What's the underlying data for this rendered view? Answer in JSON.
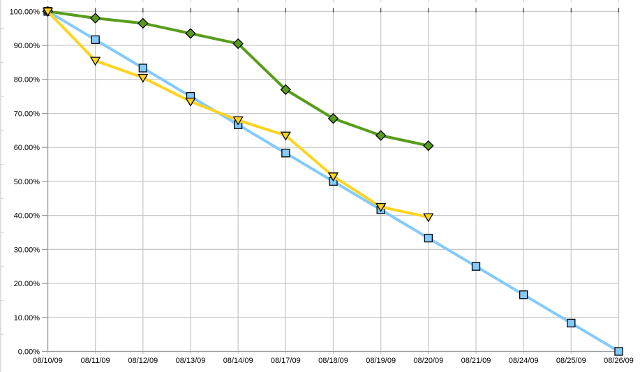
{
  "chart": {
    "background_color": "#FFFFFF",
    "gridline_color": "#C6C6C6",
    "axis_color": "#9A9A9A",
    "top_tick_color": "#3C3C3C",
    "edge_artifact_color": "#D4D4D4",
    "text_color": "#000000",
    "title": "",
    "legend": "none"
  },
  "chart_data": {
    "type": "line",
    "title": "",
    "xlabel": "",
    "ylabel": "",
    "grid": true,
    "legend": "none",
    "ylim": [
      0,
      100
    ],
    "y_major_step": 10,
    "y_tick_labels": [
      "0.00%",
      "10.00%",
      "20.00%",
      "30.00%",
      "40.00%",
      "50.00%",
      "60.00%",
      "70.00%",
      "80.00%",
      "90.00%",
      "100.00%"
    ],
    "categories": [
      "08/10/09",
      "08/11/09",
      "08/12/09",
      "08/13/09",
      "08/14/09",
      "08/17/09",
      "08/18/09",
      "08/19/09",
      "08/20/09",
      "08/21/09",
      "08/24/09",
      "08/25/09",
      "08/26/09"
    ],
    "series": [
      {
        "name": "ideal-burndown-blue-squares",
        "marker": "square",
        "color": "#83CAFF",
        "line_width": 4,
        "values": [
          100,
          91.67,
          83.33,
          75,
          66.67,
          58.33,
          50,
          41.67,
          33.33,
          25,
          16.67,
          8.33,
          0
        ]
      },
      {
        "name": "actual-green-diamonds",
        "marker": "diamond",
        "color": "#579D1C",
        "line_width": 4,
        "values": [
          100,
          98,
          96.5,
          93.5,
          90.5,
          77,
          68.5,
          63.5,
          60.5
        ]
      },
      {
        "name": "actual-yellow-triangles",
        "marker": "triangle-down",
        "color": "#FFD320",
        "line_width": 4,
        "values": [
          100,
          85.5,
          80.5,
          73.5,
          68,
          63.5,
          51.5,
          42.5,
          39.5
        ]
      }
    ]
  }
}
